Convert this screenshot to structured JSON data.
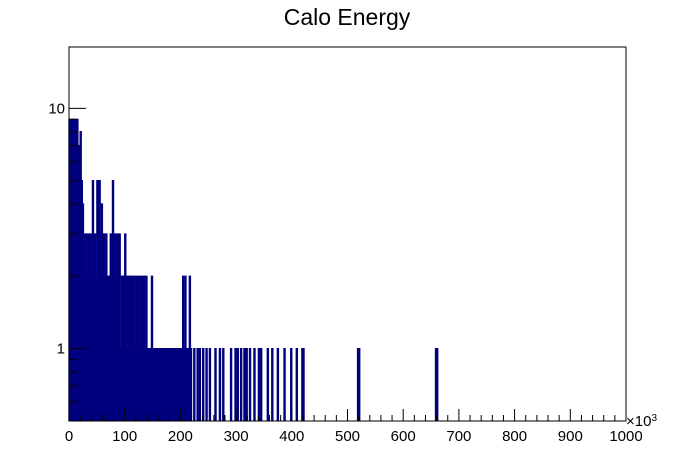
{
  "chart_data": {
    "type": "bar",
    "title": "Calo Energy",
    "xlabel": "",
    "ylabel": "",
    "x_scale_label": "×10",
    "x_scale_exp": "3",
    "xlim": [
      0,
      1000
    ],
    "ylim": [
      0.5,
      18
    ],
    "y_log": true,
    "bin_width": 2,
    "grid": false,
    "line_color": "#00007f",
    "x_ticks": [
      "0",
      "100",
      "200",
      "300",
      "400",
      "500",
      "600",
      "700",
      "800",
      "900",
      "1000"
    ],
    "y_ticks": [
      "1",
      "10"
    ],
    "bins_x": [
      1,
      3,
      5,
      7,
      9,
      11,
      13,
      15,
      17,
      19,
      21,
      23,
      25,
      27,
      29,
      31,
      33,
      35,
      37,
      39,
      41,
      43,
      45,
      47,
      49,
      51,
      53,
      55,
      57,
      59,
      61,
      63,
      65,
      67,
      69,
      71,
      73,
      75,
      77,
      79,
      81,
      83,
      85,
      87,
      89,
      91,
      93,
      95,
      97,
      99,
      101,
      103,
      105,
      107,
      109,
      111,
      113,
      115,
      117,
      119,
      121,
      123,
      125,
      127,
      129,
      131,
      133,
      135,
      137,
      139,
      141,
      143,
      145,
      147,
      149,
      151,
      153,
      155,
      157,
      159,
      161,
      163,
      165,
      167,
      169,
      171,
      173,
      175,
      177,
      179,
      181,
      183,
      185,
      187,
      189,
      191,
      193,
      195,
      197,
      199,
      201,
      203,
      205,
      207,
      209,
      211,
      213,
      215,
      217,
      219,
      225,
      231,
      235,
      241,
      247,
      253,
      263,
      271,
      277,
      291,
      299,
      303,
      309,
      315,
      319,
      325,
      333,
      341,
      345,
      357,
      365,
      375,
      387,
      399,
      409,
      419,
      421,
      519,
      521,
      659,
      661
    ],
    "bins_y": [
      9,
      9,
      9,
      9,
      9,
      8,
      9,
      9,
      6,
      7,
      8,
      5,
      4,
      3,
      2,
      3,
      2,
      3,
      1,
      3,
      2,
      5,
      1,
      3,
      2,
      5,
      4,
      5,
      3,
      4,
      2,
      3,
      2,
      3,
      1,
      2,
      2,
      3,
      1,
      5,
      1,
      3,
      2,
      3,
      2,
      3,
      1,
      2,
      2,
      2,
      3,
      1,
      2,
      1,
      2,
      2,
      1,
      2,
      1,
      2,
      1,
      2,
      1,
      2,
      1,
      2,
      1,
      2,
      1,
      2,
      1,
      1,
      1,
      1,
      2,
      1,
      1,
      1,
      1,
      1,
      1,
      1,
      1,
      1,
      1,
      1,
      1,
      1,
      1,
      1,
      1,
      1,
      1,
      1,
      1,
      1,
      1,
      1,
      1,
      1,
      1,
      1,
      2,
      1,
      2,
      1,
      1,
      1,
      2,
      1,
      1,
      1,
      1,
      1,
      1,
      1,
      1,
      1,
      1,
      1,
      1,
      1,
      1,
      1,
      1,
      1,
      1,
      1,
      1,
      1,
      1,
      1,
      1,
      1,
      1,
      1,
      1,
      1,
      1,
      1,
      1
    ]
  }
}
